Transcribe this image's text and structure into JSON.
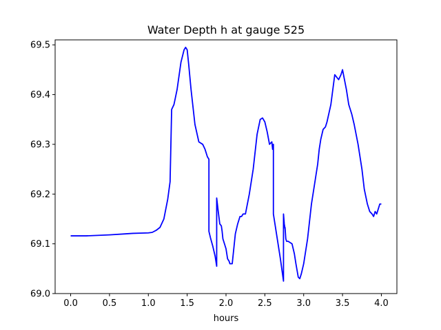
{
  "chart_data": {
    "type": "line",
    "title": "Water Depth h at gauge 525",
    "xlabel": "hours",
    "ylabel": "",
    "xlim": [
      -0.2,
      4.2
    ],
    "ylim": [
      69.0,
      69.51
    ],
    "xticks": [
      0.0,
      0.5,
      1.0,
      1.5,
      2.0,
      2.5,
      3.0,
      3.5,
      4.0
    ],
    "xtick_labels": [
      "0.0",
      "0.5",
      "1.0",
      "1.5",
      "2.0",
      "2.5",
      "3.0",
      "3.5",
      "4.0"
    ],
    "yticks": [
      69.0,
      69.1,
      69.2,
      69.3,
      69.4,
      69.5
    ],
    "ytick_labels": [
      "69.0",
      "69.1",
      "69.2",
      "69.3",
      "69.4",
      "69.5"
    ],
    "grid": false,
    "legend": "none",
    "series": [
      {
        "color": "#0000ff",
        "x": [
          0.0,
          0.2,
          0.5,
          0.7,
          0.8,
          1.0,
          1.05,
          1.1,
          1.15,
          1.2,
          1.25,
          1.28,
          1.3,
          1.3,
          1.33,
          1.37,
          1.42,
          1.46,
          1.48,
          1.5,
          1.52,
          1.55,
          1.6,
          1.65,
          1.7,
          1.73,
          1.76,
          1.78,
          1.78,
          1.8,
          1.83,
          1.86,
          1.88,
          1.88,
          1.9,
          1.92,
          1.94,
          1.95,
          1.96,
          1.97,
          1.98,
          2.0,
          2.02,
          2.04,
          2.05,
          2.08,
          2.12,
          2.15,
          2.18,
          2.2,
          2.22,
          2.25,
          2.3,
          2.35,
          2.4,
          2.44,
          2.47,
          2.5,
          2.53,
          2.56,
          2.59,
          2.6,
          2.61,
          2.61,
          2.65,
          2.7,
          2.74,
          2.74,
          2.75,
          2.76,
          2.76,
          2.77,
          2.78,
          2.8,
          2.85,
          2.88,
          2.9,
          2.93,
          2.95,
          2.97,
          3.0,
          3.05,
          3.1,
          3.15,
          3.18,
          3.2,
          3.22,
          3.25,
          3.28,
          3.3,
          3.35,
          3.4,
          3.45,
          3.48,
          3.5,
          3.55,
          3.58,
          3.6,
          3.62,
          3.65,
          3.7,
          3.75,
          3.78,
          3.82,
          3.85,
          3.88,
          3.9,
          3.92,
          3.94,
          3.96,
          3.98,
          4.0
        ],
        "y": [
          69.116,
          69.116,
          69.118,
          69.12,
          69.121,
          69.122,
          69.123,
          69.127,
          69.133,
          69.15,
          69.19,
          69.225,
          69.37,
          69.37,
          69.38,
          69.41,
          69.465,
          69.49,
          69.495,
          69.49,
          69.46,
          69.41,
          69.34,
          69.305,
          69.3,
          69.29,
          69.275,
          69.27,
          69.125,
          69.112,
          69.095,
          69.075,
          69.055,
          69.192,
          69.165,
          69.14,
          69.136,
          69.125,
          69.11,
          69.105,
          69.1,
          69.09,
          69.07,
          69.065,
          69.06,
          69.06,
          69.12,
          69.14,
          69.155,
          69.155,
          69.16,
          69.16,
          69.2,
          69.25,
          69.32,
          69.35,
          69.353,
          69.345,
          69.325,
          69.3,
          69.305,
          69.29,
          69.3,
          69.16,
          69.12,
          69.07,
          69.025,
          69.16,
          69.14,
          69.13,
          69.133,
          69.11,
          69.105,
          69.105,
          69.1,
          69.08,
          69.06,
          69.033,
          69.03,
          69.04,
          69.06,
          69.11,
          69.18,
          69.23,
          69.26,
          69.29,
          69.31,
          69.33,
          69.335,
          69.345,
          69.38,
          69.44,
          69.43,
          69.44,
          69.45,
          69.41,
          69.38,
          69.37,
          69.36,
          69.34,
          69.3,
          69.25,
          69.21,
          69.18,
          69.165,
          69.16,
          69.155,
          69.165,
          69.16,
          69.17,
          69.18,
          69.18
        ]
      }
    ]
  }
}
